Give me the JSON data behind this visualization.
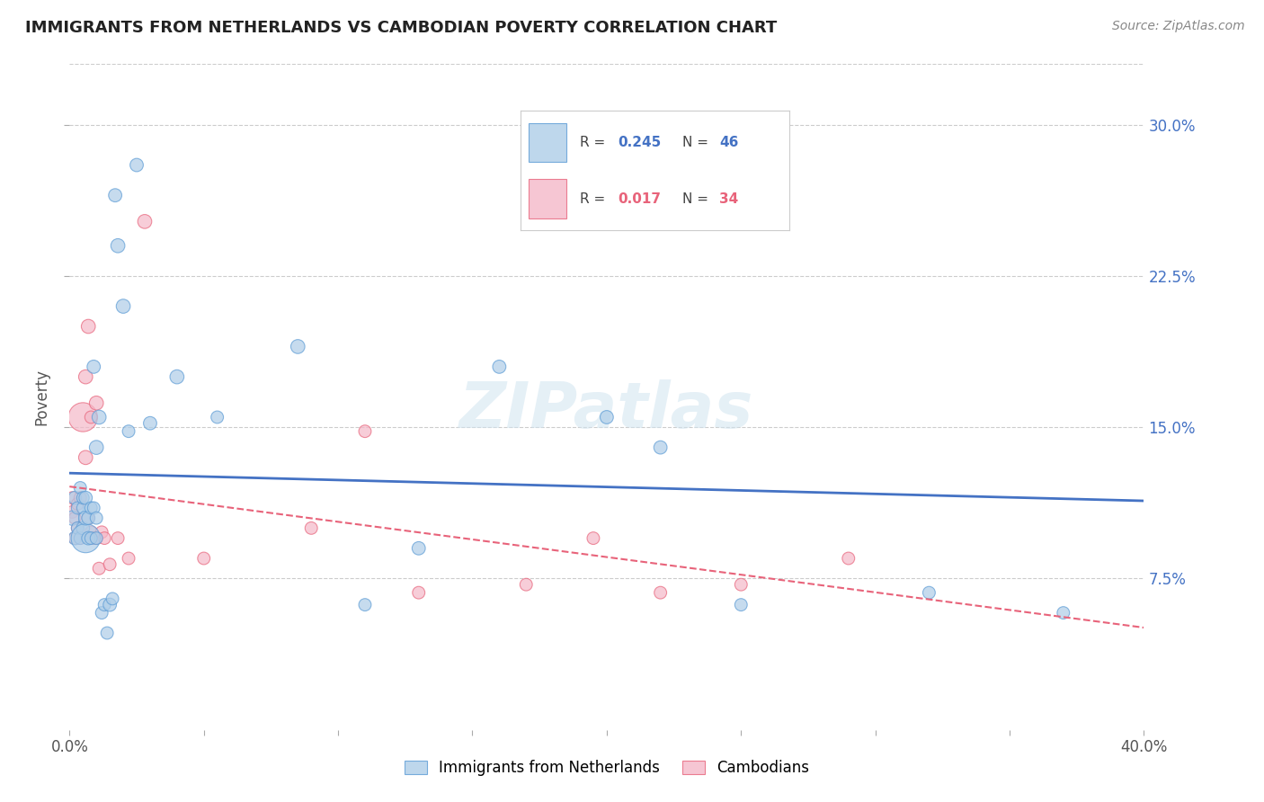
{
  "title": "IMMIGRANTS FROM NETHERLANDS VS CAMBODIAN POVERTY CORRELATION CHART",
  "source": "Source: ZipAtlas.com",
  "ylabel": "Poverty",
  "ytick_labels": [
    "30.0%",
    "22.5%",
    "15.0%",
    "7.5%"
  ],
  "ytick_values": [
    0.3,
    0.225,
    0.15,
    0.075
  ],
  "xmin": 0.0,
  "xmax": 0.4,
  "ymin": 0.0,
  "ymax": 0.33,
  "legend_blue_r": "0.245",
  "legend_blue_n": "46",
  "legend_pink_r": "0.017",
  "legend_pink_n": "34",
  "legend_blue_label": "Immigrants from Netherlands",
  "legend_pink_label": "Cambodians",
  "blue_color": "#aecde8",
  "pink_color": "#f4b8c8",
  "blue_edge_color": "#5b9bd5",
  "pink_edge_color": "#e8637a",
  "blue_line_color": "#4472c4",
  "pink_line_color": "#e8637a",
  "watermark": "ZIPatlas",
  "blue_x": [
    0.001,
    0.002,
    0.002,
    0.003,
    0.003,
    0.004,
    0.004,
    0.005,
    0.005,
    0.005,
    0.006,
    0.006,
    0.006,
    0.007,
    0.007,
    0.008,
    0.008,
    0.009,
    0.009,
    0.01,
    0.01,
    0.01,
    0.011,
    0.012,
    0.013,
    0.014,
    0.015,
    0.016,
    0.017,
    0.018,
    0.02,
    0.022,
    0.025,
    0.03,
    0.04,
    0.055,
    0.085,
    0.11,
    0.13,
    0.16,
    0.175,
    0.2,
    0.22,
    0.25,
    0.32,
    0.37
  ],
  "blue_y": [
    0.105,
    0.095,
    0.115,
    0.1,
    0.11,
    0.095,
    0.12,
    0.1,
    0.11,
    0.115,
    0.095,
    0.105,
    0.115,
    0.095,
    0.105,
    0.095,
    0.11,
    0.11,
    0.18,
    0.095,
    0.105,
    0.14,
    0.155,
    0.058,
    0.062,
    0.048,
    0.062,
    0.065,
    0.265,
    0.24,
    0.21,
    0.148,
    0.28,
    0.152,
    0.175,
    0.155,
    0.19,
    0.062,
    0.09,
    0.18,
    0.275,
    0.155,
    0.14,
    0.062,
    0.068,
    0.058
  ],
  "blue_size": [
    30,
    25,
    25,
    22,
    22,
    22,
    22,
    25,
    22,
    22,
    120,
    28,
    25,
    25,
    25,
    22,
    22,
    22,
    25,
    22,
    22,
    28,
    28,
    22,
    22,
    22,
    25,
    22,
    25,
    28,
    28,
    22,
    25,
    25,
    28,
    22,
    28,
    22,
    25,
    25,
    28,
    25,
    25,
    22,
    22,
    22
  ],
  "pink_x": [
    0.001,
    0.001,
    0.002,
    0.002,
    0.003,
    0.003,
    0.004,
    0.004,
    0.005,
    0.006,
    0.006,
    0.007,
    0.007,
    0.008,
    0.008,
    0.009,
    0.01,
    0.01,
    0.011,
    0.012,
    0.013,
    0.015,
    0.018,
    0.022,
    0.028,
    0.05,
    0.09,
    0.11,
    0.13,
    0.17,
    0.195,
    0.22,
    0.25,
    0.29
  ],
  "pink_y": [
    0.108,
    0.115,
    0.105,
    0.095,
    0.1,
    0.112,
    0.115,
    0.095,
    0.155,
    0.135,
    0.175,
    0.105,
    0.2,
    0.098,
    0.155,
    0.095,
    0.162,
    0.095,
    0.08,
    0.098,
    0.095,
    0.082,
    0.095,
    0.085,
    0.252,
    0.085,
    0.1,
    0.148,
    0.068,
    0.072,
    0.095,
    0.068,
    0.072,
    0.085
  ],
  "pink_size": [
    22,
    22,
    22,
    22,
    22,
    22,
    22,
    22,
    120,
    28,
    28,
    22,
    28,
    22,
    22,
    22,
    28,
    22,
    22,
    22,
    22,
    22,
    22,
    22,
    28,
    22,
    22,
    22,
    22,
    22,
    22,
    22,
    22,
    22
  ],
  "xtick_positions": [
    0.0,
    0.05,
    0.1,
    0.15,
    0.2,
    0.25,
    0.3,
    0.35,
    0.4
  ],
  "xtick_labels_show_only_ends": true
}
